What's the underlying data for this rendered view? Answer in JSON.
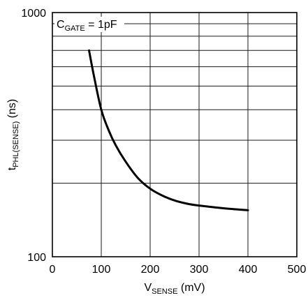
{
  "chart_data": {
    "type": "line",
    "title": "",
    "xlabel": {
      "main": "V",
      "sub": "SENSE",
      "suffix": " (mV)"
    },
    "ylabel": {
      "main": "t",
      "sub": "PHL(SENSE)",
      "suffix": " (ns)"
    },
    "xlim": [
      0,
      500
    ],
    "ylim": [
      100,
      1000
    ],
    "y_scale": "log",
    "grid": true,
    "x_ticks": [
      0,
      100,
      200,
      300,
      400,
      500
    ],
    "y_ticks": [
      100,
      1000
    ],
    "x_tick_labels": [
      "0",
      "100",
      "200",
      "300",
      "400",
      "500"
    ],
    "y_tick_labels": [
      "100",
      "1000"
    ],
    "annotation": {
      "main": "C",
      "sub": "GATE",
      "suffix": " = 1pF"
    },
    "series": [
      {
        "x": [
          75,
          85,
          100,
          115,
          130,
          150,
          175,
          200,
          225,
          250,
          275,
          300,
          350,
          400
        ],
        "y": [
          700,
          550,
          400,
          330,
          285,
          245,
          210,
          190,
          178,
          170,
          165,
          162,
          158,
          155
        ]
      }
    ]
  }
}
